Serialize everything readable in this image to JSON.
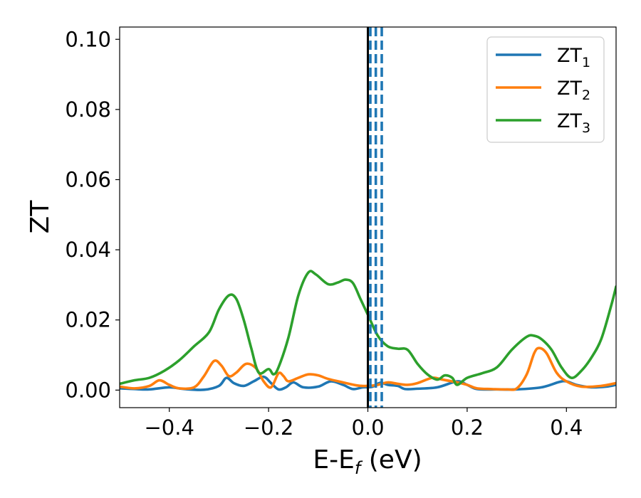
{
  "chart_data": {
    "type": "line",
    "xlabel": {
      "main": "E-E",
      "sub": "f",
      "unit": " (eV)"
    },
    "ylabel": "ZT",
    "xlim": [
      -0.5,
      0.5
    ],
    "ylim": [
      -0.005,
      0.1035
    ],
    "xticks": [
      -0.4,
      -0.2,
      0.0,
      0.2,
      0.4
    ],
    "xtick_labels": [
      "−0.4",
      "−0.2",
      "0.0",
      "0.2",
      "0.4"
    ],
    "yticks": [
      0.0,
      0.02,
      0.04,
      0.06,
      0.08,
      0.1
    ],
    "ytick_labels": [
      "0.00",
      "0.02",
      "0.04",
      "0.06",
      "0.08",
      "0.10"
    ],
    "grid": false,
    "legend_position": "upper right",
    "fermi_line": {
      "x": 0.0,
      "color": "#000000",
      "style": "solid"
    },
    "vlines": [
      {
        "x": 0.005,
        "color": "#1f77b4",
        "style": "dashed"
      },
      {
        "x": 0.016,
        "color": "#1f77b4",
        "style": "dashed"
      },
      {
        "x": 0.028,
        "color": "#1f77b4",
        "style": "dashed"
      }
    ],
    "series": [
      {
        "name": "ZT",
        "subscript": "1",
        "color": "#1f77b4",
        "points": [
          [
            -0.5,
            0.0005
          ],
          [
            -0.47,
            0.0003
          ],
          [
            -0.44,
            0.0002
          ],
          [
            -0.4,
            0.0008
          ],
          [
            -0.37,
            0.0003
          ],
          [
            -0.33,
            0.0001
          ],
          [
            -0.3,
            0.0012
          ],
          [
            -0.285,
            0.0035
          ],
          [
            -0.27,
            0.002
          ],
          [
            -0.25,
            0.0012
          ],
          [
            -0.23,
            0.0025
          ],
          [
            -0.21,
            0.0038
          ],
          [
            -0.195,
            0.002
          ],
          [
            -0.18,
            0.0002
          ],
          [
            -0.165,
            0.0008
          ],
          [
            -0.15,
            0.0022
          ],
          [
            -0.13,
            0.0008
          ],
          [
            -0.1,
            0.001
          ],
          [
            -0.075,
            0.0025
          ],
          [
            -0.05,
            0.0015
          ],
          [
            -0.03,
            0.0003
          ],
          [
            -0.01,
            0.0008
          ],
          [
            0.0,
            0.0008
          ],
          [
            0.01,
            0.001
          ],
          [
            0.025,
            0.0021
          ],
          [
            0.04,
            0.0015
          ],
          [
            0.06,
            0.0012
          ],
          [
            0.075,
            0.0003
          ],
          [
            0.1,
            0.0004
          ],
          [
            0.14,
            0.0008
          ],
          [
            0.18,
            0.0025
          ],
          [
            0.2,
            0.0015
          ],
          [
            0.22,
            0.0003
          ],
          [
            0.26,
            0.0002
          ],
          [
            0.3,
            0.0002
          ],
          [
            0.35,
            0.0008
          ],
          [
            0.385,
            0.0023
          ],
          [
            0.4,
            0.0025
          ],
          [
            0.42,
            0.0015
          ],
          [
            0.45,
            0.0008
          ],
          [
            0.48,
            0.001
          ],
          [
            0.5,
            0.0015
          ]
        ]
      },
      {
        "name": "ZT",
        "subscript": "2",
        "color": "#ff7f0e",
        "points": [
          [
            -0.5,
            0.001
          ],
          [
            -0.47,
            0.0005
          ],
          [
            -0.44,
            0.0012
          ],
          [
            -0.42,
            0.0028
          ],
          [
            -0.4,
            0.0015
          ],
          [
            -0.38,
            0.0005
          ],
          [
            -0.35,
            0.0008
          ],
          [
            -0.33,
            0.004
          ],
          [
            -0.31,
            0.0083
          ],
          [
            -0.295,
            0.007
          ],
          [
            -0.28,
            0.004
          ],
          [
            -0.265,
            0.005
          ],
          [
            -0.245,
            0.0075
          ],
          [
            -0.225,
            0.0062
          ],
          [
            -0.21,
            0.0025
          ],
          [
            -0.195,
            0.0008
          ],
          [
            -0.18,
            0.0048
          ],
          [
            -0.17,
            0.004
          ],
          [
            -0.16,
            0.0025
          ],
          [
            -0.14,
            0.0035
          ],
          [
            -0.12,
            0.0045
          ],
          [
            -0.1,
            0.0042
          ],
          [
            -0.08,
            0.0032
          ],
          [
            -0.05,
            0.0022
          ],
          [
            -0.02,
            0.0013
          ],
          [
            0.0,
            0.0012
          ],
          [
            0.02,
            0.0015
          ],
          [
            0.04,
            0.0022
          ],
          [
            0.06,
            0.0018
          ],
          [
            0.08,
            0.0015
          ],
          [
            0.1,
            0.002
          ],
          [
            0.13,
            0.0035
          ],
          [
            0.15,
            0.003
          ],
          [
            0.18,
            0.0022
          ],
          [
            0.2,
            0.0015
          ],
          [
            0.22,
            0.0005
          ],
          [
            0.25,
            0.0003
          ],
          [
            0.28,
            0.0002
          ],
          [
            0.3,
            0.0005
          ],
          [
            0.32,
            0.0045
          ],
          [
            0.335,
            0.0105
          ],
          [
            0.345,
            0.012
          ],
          [
            0.36,
            0.0105
          ],
          [
            0.38,
            0.005
          ],
          [
            0.4,
            0.0025
          ],
          [
            0.43,
            0.001
          ],
          [
            0.47,
            0.0012
          ],
          [
            0.5,
            0.002
          ]
        ]
      },
      {
        "name": "ZT",
        "subscript": "3",
        "color": "#2ca02c",
        "points": [
          [
            -0.5,
            0.0018
          ],
          [
            -0.47,
            0.0028
          ],
          [
            -0.44,
            0.0035
          ],
          [
            -0.41,
            0.0055
          ],
          [
            -0.38,
            0.0085
          ],
          [
            -0.35,
            0.0125
          ],
          [
            -0.32,
            0.0165
          ],
          [
            -0.3,
            0.023
          ],
          [
            -0.28,
            0.027
          ],
          [
            -0.265,
            0.026
          ],
          [
            -0.25,
            0.02
          ],
          [
            -0.235,
            0.012
          ],
          [
            -0.22,
            0.005
          ],
          [
            -0.2,
            0.006
          ],
          [
            -0.19,
            0.0045
          ],
          [
            -0.18,
            0.0065
          ],
          [
            -0.16,
            0.015
          ],
          [
            -0.14,
            0.027
          ],
          [
            -0.12,
            0.0335
          ],
          [
            -0.105,
            0.033
          ],
          [
            -0.08,
            0.0302
          ],
          [
            -0.06,
            0.0307
          ],
          [
            -0.045,
            0.0315
          ],
          [
            -0.03,
            0.0305
          ],
          [
            -0.015,
            0.026
          ],
          [
            0.0,
            0.0215
          ],
          [
            0.02,
            0.0155
          ],
          [
            0.04,
            0.0125
          ],
          [
            0.06,
            0.0118
          ],
          [
            0.08,
            0.0115
          ],
          [
            0.1,
            0.0075
          ],
          [
            0.12,
            0.0045
          ],
          [
            0.14,
            0.003
          ],
          [
            0.155,
            0.0042
          ],
          [
            0.17,
            0.0035
          ],
          [
            0.18,
            0.0015
          ],
          [
            0.2,
            0.0035
          ],
          [
            0.23,
            0.0048
          ],
          [
            0.26,
            0.0065
          ],
          [
            0.29,
            0.0115
          ],
          [
            0.32,
            0.0152
          ],
          [
            0.335,
            0.0155
          ],
          [
            0.35,
            0.0145
          ],
          [
            0.37,
            0.0115
          ],
          [
            0.39,
            0.0065
          ],
          [
            0.41,
            0.0035
          ],
          [
            0.43,
            0.0055
          ],
          [
            0.45,
            0.0092
          ],
          [
            0.47,
            0.0145
          ],
          [
            0.49,
            0.024
          ],
          [
            0.5,
            0.0295
          ]
        ]
      }
    ]
  }
}
